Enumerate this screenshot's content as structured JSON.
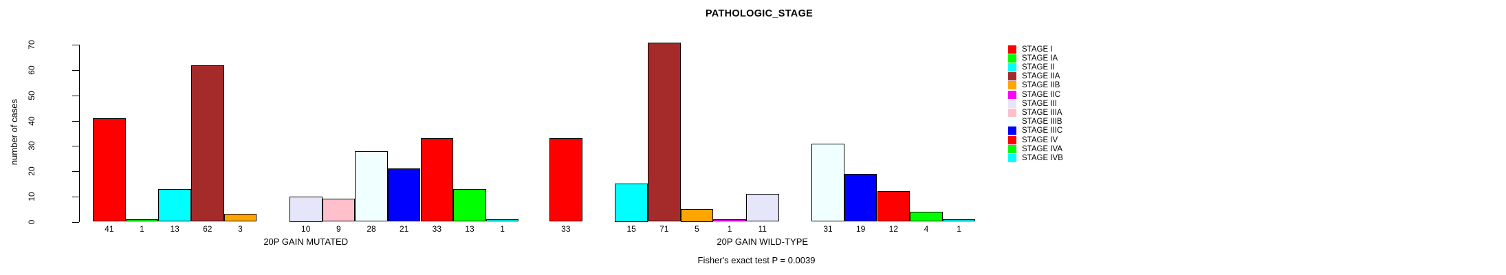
{
  "page": {
    "background": "#FFFFFF"
  },
  "chart_data": {
    "type": "bar",
    "title": "PATHOLOGIC_STAGE",
    "ylabel": "number of cases",
    "ylim": [
      0,
      70
    ],
    "yticks": [
      "0",
      "10",
      "20",
      "30",
      "40",
      "50",
      "60",
      "70"
    ],
    "grid": false,
    "legend_position": "right",
    "bar_border_color": "#000000",
    "legend": [
      {
        "label": "STAGE I",
        "color": "#FF0000"
      },
      {
        "label": "STAGE IA",
        "color": "#00FF00"
      },
      {
        "label": "STAGE II",
        "color": "#00FFFF"
      },
      {
        "label": "STAGE IIA",
        "color": "#A52A2A"
      },
      {
        "label": "STAGE IIB",
        "color": "#FFA500"
      },
      {
        "label": "STAGE IIC",
        "color": "#FF00FF"
      },
      {
        "label": "STAGE III",
        "color": "#E6E6FA"
      },
      {
        "label": "STAGE IIIA",
        "color": "#FFC0CB"
      },
      {
        "label": "STAGE IIIB",
        "color": "#F0FFFF"
      },
      {
        "label": "STAGE IIIC",
        "color": "#0000FF"
      },
      {
        "label": "STAGE IV",
        "color": "#FF0000"
      },
      {
        "label": "STAGE IVA",
        "color": "#00FF00"
      },
      {
        "label": "STAGE IVB",
        "color": "#00FFFF"
      }
    ],
    "groups": [
      {
        "label": "20P GAIN MUTATED",
        "values": [
          41,
          1,
          13,
          62,
          3,
          0,
          10,
          9,
          28,
          21,
          33,
          13,
          1
        ]
      },
      {
        "label": "20P GAIN WILD-TYPE",
        "values": [
          33,
          0,
          15,
          71,
          5,
          1,
          11,
          0,
          31,
          19,
          12,
          4,
          1
        ]
      }
    ],
    "zero_value_bars_hidden": true,
    "annotation": "Fisher's exact test P = 0.0039"
  }
}
